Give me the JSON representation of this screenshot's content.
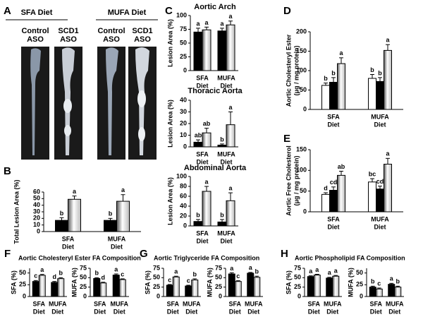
{
  "panel_a": {
    "label": "A",
    "diets": [
      "SFA Diet",
      "MUFA Diet"
    ],
    "treatments": [
      [
        "Control",
        "ASO"
      ],
      [
        "SCD1",
        "ASO"
      ],
      [
        "Control",
        "ASO"
      ],
      [
        "SCD1",
        "ASO"
      ]
    ]
  },
  "chart_data": [
    {
      "type": "bar",
      "panel": "B",
      "ylabel": [
        "Total Lesion Area (%)"
      ],
      "ylim": [
        0,
        60
      ],
      "yticks": [
        0,
        10,
        20,
        30,
        40,
        50,
        60
      ],
      "categories": [
        [
          "SFA",
          "Diet"
        ],
        [
          "MUFA",
          "Diet"
        ]
      ],
      "series": [
        {
          "color": "#000000",
          "values": [
            17,
            17
          ],
          "errors": [
            4,
            3
          ],
          "labels": [
            "b",
            "b"
          ]
        },
        {
          "color": "#bbbbbb",
          "values": [
            49,
            46
          ],
          "errors": [
            5,
            10
          ],
          "labels": [
            "a",
            "a"
          ]
        }
      ]
    },
    {
      "type": "bar",
      "panel": "C",
      "title": "Aortic Arch",
      "ylabel": [
        "Lesion Area (%)"
      ],
      "ylim": [
        0,
        100
      ],
      "yticks": [
        0,
        25,
        50,
        75,
        100
      ],
      "categories": [
        [
          "SFA",
          "Diet"
        ],
        [
          "MUFA",
          "Diet"
        ]
      ],
      "series": [
        {
          "color": "#000000",
          "values": [
            70,
            72
          ],
          "errors": [
            7,
            5
          ],
          "labels": [
            "a",
            "a"
          ]
        },
        {
          "color": "#bbbbbb",
          "values": [
            74,
            83
          ],
          "errors": [
            5,
            7
          ],
          "labels": [
            "a",
            "a"
          ]
        }
      ]
    },
    {
      "type": "bar",
      "title": "Thoracic Aorta",
      "ylabel": [
        "Lesion Area (%)"
      ],
      "ylim": [
        0,
        40
      ],
      "yticks": [
        0,
        10,
        20,
        30,
        40
      ],
      "categories": [
        [
          "SFA",
          "Diet"
        ],
        [
          "MUFA",
          "Diet"
        ]
      ],
      "series": [
        {
          "color": "#000000",
          "values": [
            4,
            1.5
          ],
          "errors": [
            2,
            1
          ],
          "labels": [
            "ab",
            "b"
          ]
        },
        {
          "color": "#bbbbbb",
          "values": [
            12,
            19
          ],
          "errors": [
            4,
            11
          ],
          "labels": [
            "ab",
            "a"
          ]
        }
      ]
    },
    {
      "type": "bar",
      "title": "Abdominal Aorta",
      "ylabel": [
        "Lesion Area (%)"
      ],
      "ylim": [
        0,
        100
      ],
      "yticks": [
        0,
        20,
        40,
        60,
        80,
        100
      ],
      "categories": [
        [
          "SFA",
          "Diet"
        ],
        [
          "MUFA",
          "Diet"
        ]
      ],
      "series": [
        {
          "color": "#000000",
          "values": [
            9,
            8
          ],
          "errors": [
            4,
            5
          ],
          "labels": [
            "b",
            "b"
          ]
        },
        {
          "color": "#bbbbbb",
          "values": [
            70,
            51
          ],
          "errors": [
            10,
            16
          ],
          "labels": [
            "a",
            "a"
          ]
        }
      ]
    },
    {
      "type": "bar",
      "panel": "D",
      "ylabel": [
        "Aortic Cholesteryl Ester",
        "(μg / mg protein)"
      ],
      "ylim": [
        0,
        200
      ],
      "yticks": [
        0,
        50,
        100,
        150,
        200
      ],
      "categories": [
        [
          "SFA",
          "Diet"
        ],
        [
          "MUFA",
          "Diet"
        ]
      ],
      "series": [
        {
          "color": "#ffffff",
          "values": [
            62,
            80
          ],
          "errors": [
            6,
            10
          ],
          "labels": [
            "b",
            "b"
          ]
        },
        {
          "color": "#000000",
          "values": [
            70,
            72
          ],
          "errors": [
            12,
            10
          ],
          "labels": [
            "b",
            "b"
          ]
        },
        {
          "color": "#bbbbbb",
          "values": [
            118,
            152
          ],
          "errors": [
            15,
            15
          ],
          "labels": [
            "a",
            "a"
          ]
        }
      ]
    },
    {
      "type": "bar",
      "panel": "E",
      "ylabel": [
        "Aortic Free Cholesterol",
        "(μg / mg protein)"
      ],
      "ylim": [
        0,
        150
      ],
      "yticks": [
        0,
        50,
        100,
        150
      ],
      "categories": [
        [
          "SFA",
          "Diet"
        ],
        [
          "MUFA",
          "Diet"
        ]
      ],
      "series": [
        {
          "color": "#ffffff",
          "values": [
            42,
            72
          ],
          "errors": [
            4,
            8
          ],
          "labels": [
            "d",
            "bc"
          ]
        },
        {
          "color": "#000000",
          "values": [
            52,
            55
          ],
          "errors": [
            8,
            7
          ],
          "labels": [
            "cd",
            "cd"
          ]
        },
        {
          "color": "#bbbbbb",
          "values": [
            88,
            115
          ],
          "errors": [
            10,
            14
          ],
          "labels": [
            "ab",
            "a"
          ]
        }
      ]
    },
    {
      "type": "bar",
      "panel": "F",
      "title": "Aortic Cholesteryl Ester FA Composition",
      "ylabel": [
        "SFA (%)"
      ],
      "ylim": [
        0,
        60
      ],
      "yticks": [
        0,
        25,
        50
      ],
      "categories": [
        [
          "SFA",
          "Diet"
        ],
        [
          "MUFA",
          "Diet"
        ]
      ],
      "series": [
        {
          "color": "#000000",
          "values": [
            32,
            30
          ],
          "errors": [
            2,
            2
          ],
          "labels": [
            "c",
            "d"
          ]
        },
        {
          "color": "#bbbbbb",
          "values": [
            45,
            38
          ],
          "errors": [
            2,
            2
          ],
          "labels": [
            "a",
            "b"
          ]
        }
      ]
    },
    {
      "type": "bar",
      "ylabel": [
        "MUFA (%)"
      ],
      "ylim": [
        0,
        75
      ],
      "yticks": [
        0,
        25,
        50,
        75
      ],
      "categories": [
        [
          "SFA",
          "Diet"
        ],
        [
          "MUFA",
          "Diet"
        ]
      ],
      "series": [
        {
          "color": "#000000",
          "values": [
            48,
            57
          ],
          "errors": [
            2,
            3
          ],
          "labels": [
            "b",
            "a"
          ]
        },
        {
          "color": "#bbbbbb",
          "values": [
            36,
            45
          ],
          "errors": [
            2,
            2
          ],
          "labels": [
            "d",
            "c"
          ]
        }
      ]
    },
    {
      "type": "bar",
      "panel": "G",
      "title": "Aortic Triglyceride FA Composition",
      "ylabel": [
        "SFA (%)"
      ],
      "ylim": [
        0,
        75
      ],
      "yticks": [
        0,
        25,
        50,
        75
      ],
      "categories": [
        [
          "SFA",
          "Diet"
        ],
        [
          "MUFA",
          "Diet"
        ]
      ],
      "series": [
        {
          "color": "#000000",
          "values": [
            30,
            28
          ],
          "errors": [
            2,
            2
          ],
          "labels": [
            "c",
            "c"
          ]
        },
        {
          "color": "#bbbbbb",
          "values": [
            52,
            44
          ],
          "errors": [
            2,
            3
          ],
          "labels": [
            "a",
            "b"
          ]
        }
      ]
    },
    {
      "type": "bar",
      "ylabel": [
        "MUFA (%)"
      ],
      "ylim": [
        0,
        75
      ],
      "yticks": [
        0,
        25,
        50,
        75
      ],
      "categories": [
        [
          "SFA",
          "Diet"
        ],
        [
          "MUFA",
          "Diet"
        ]
      ],
      "series": [
        {
          "color": "#000000",
          "values": [
            60,
            62
          ],
          "errors": [
            3,
            2
          ],
          "labels": [
            "a",
            "a"
          ]
        },
        {
          "color": "#bbbbbb",
          "values": [
            40,
            51
          ],
          "errors": [
            2,
            3
          ],
          "labels": [
            "c",
            "b"
          ]
        }
      ]
    },
    {
      "type": "bar",
      "panel": "H",
      "title": "Aortic Phospholipid FA Composition",
      "ylabel": [
        "SFA (%)"
      ],
      "ylim": [
        0,
        75
      ],
      "yticks": [
        0,
        25,
        50,
        75
      ],
      "categories": [
        [
          "SFA",
          "Diet"
        ],
        [
          "MUFA",
          "Diet"
        ]
      ],
      "series": [
        {
          "color": "#000000",
          "values": [
            53,
            49
          ],
          "errors": [
            2,
            2
          ],
          "labels": [
            "a",
            "a"
          ]
        },
        {
          "color": "#bbbbbb",
          "values": [
            57,
            54
          ],
          "errors": [
            2,
            2
          ],
          "labels": [
            "a",
            "a"
          ]
        }
      ]
    },
    {
      "type": "bar",
      "ylabel": [
        "MUFA (%)"
      ],
      "ylim": [
        0,
        60
      ],
      "yticks": [
        0,
        25,
        50
      ],
      "categories": [
        [
          "SFA",
          "Diet"
        ],
        [
          "MUFA",
          "Diet"
        ]
      ],
      "series": [
        {
          "color": "#000000",
          "values": [
            20,
            26
          ],
          "errors": [
            2,
            2
          ],
          "labels": [
            "b",
            "a"
          ]
        },
        {
          "color": "#bbbbbb",
          "values": [
            16,
            20
          ],
          "errors": [
            2,
            2
          ],
          "labels": [
            "c",
            "b"
          ]
        }
      ]
    }
  ]
}
